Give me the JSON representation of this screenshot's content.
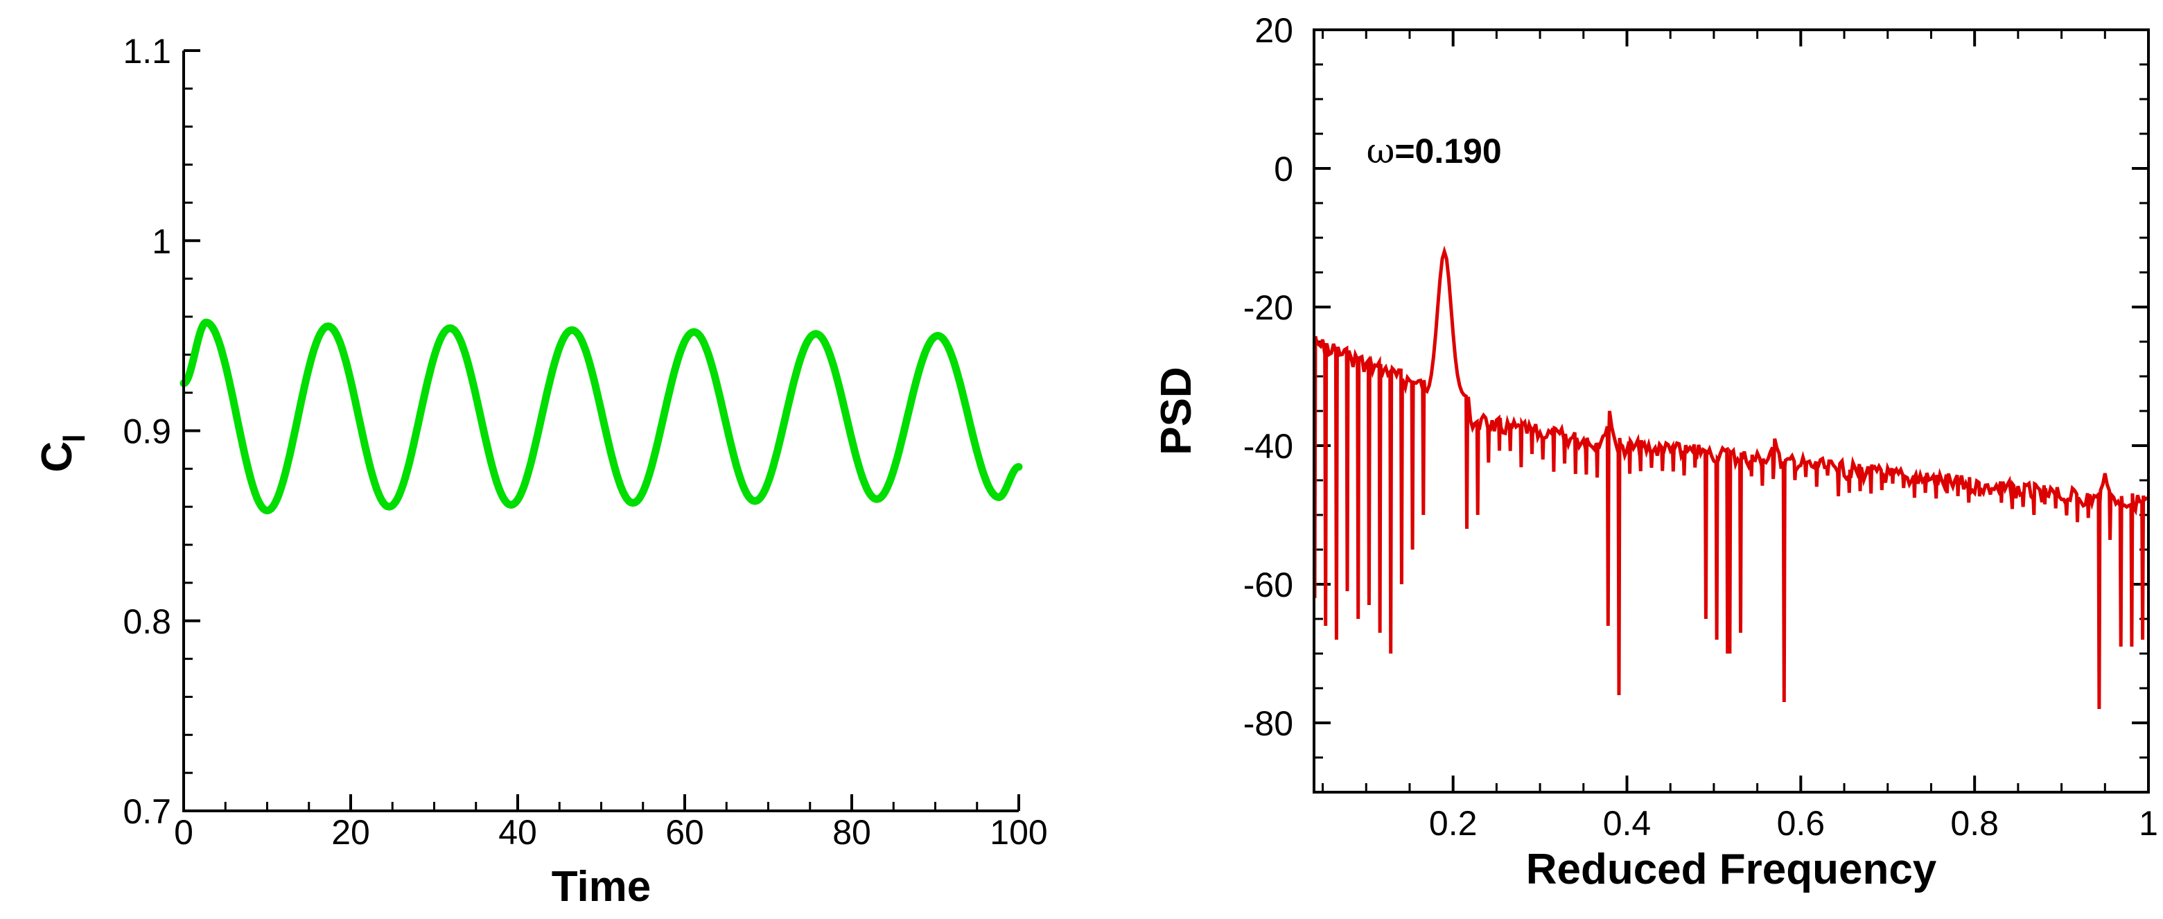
{
  "chart_data": [
    {
      "type": "line",
      "xlabel": "Time",
      "ylabel_main": "C",
      "ylabel_sub": "l",
      "xlim": [
        0,
        100
      ],
      "ylim": [
        0.7,
        1.1
      ],
      "xticks": [
        0,
        20,
        40,
        60,
        80,
        100
      ],
      "xtick_labels": [
        "0",
        "20",
        "40",
        "60",
        "80",
        "100"
      ],
      "yticks": [
        0.7,
        0.8,
        0.9,
        1.0,
        1.1
      ],
      "ytick_labels": [
        "0.7",
        "0.8",
        "0.9",
        "1",
        "1.1"
      ],
      "grid": false,
      "color": "#00dd00",
      "series": [
        {
          "x": [
            0,
            2.7,
            10.0,
            17.3,
            24.6,
            31.9,
            39.2,
            46.5,
            53.8,
            61.1,
            68.4,
            75.7,
            83.0,
            90.3,
            97.6,
            100
          ],
          "values": [
            0.925,
            0.957,
            0.858,
            0.955,
            0.86,
            0.954,
            0.861,
            0.953,
            0.862,
            0.952,
            0.863,
            0.951,
            0.864,
            0.95,
            0.865,
            0.881
          ]
        }
      ]
    },
    {
      "type": "line",
      "xlabel": "Reduced Frequency",
      "ylabel": "PSD",
      "xlim": [
        0.04,
        1.0
      ],
      "ylim": [
        -90,
        20
      ],
      "xticks": [
        0.2,
        0.4,
        0.6,
        0.8,
        1.0
      ],
      "xtick_labels": [
        "0.2",
        "0.4",
        "0.6",
        "0.8",
        "1"
      ],
      "yticks": [
        -80,
        -60,
        -40,
        -20,
        0,
        20
      ],
      "ytick_labels": [
        "-80",
        "-60",
        "-40",
        "-20",
        "0",
        "20"
      ],
      "grid": false,
      "color": "#dd0000",
      "annotation": {
        "symbol": "ω",
        "text": "=0.190",
        "x": 0.19,
        "y": 2
      },
      "peak": {
        "x": 0.19,
        "y": -12
      },
      "harmonics": [
        {
          "x": 0.38,
          "y": -35
        },
        {
          "x": 0.57,
          "y": -39
        },
        {
          "x": 0.95,
          "y": -44
        }
      ],
      "envelope": {
        "x": [
          0.04,
          0.1,
          0.16,
          0.175,
          0.21,
          0.3,
          0.4,
          0.5,
          0.6,
          0.7,
          0.8,
          0.9,
          1.0
        ],
        "y": [
          -24,
          -27,
          -30,
          -30,
          -35,
          -37,
          -39,
          -40,
          -41.5,
          -43,
          -44.5,
          -46,
          -47
        ]
      },
      "baseline": {
        "x": [
          0.04,
          0.175,
          0.205,
          0.4,
          0.6,
          0.8,
          1.0
        ],
        "y": [
          -32,
          -36,
          -40,
          -42,
          -44,
          -46,
          -52
        ]
      },
      "dip_spacing": 0.0125,
      "deep_dips": [
        {
          "x": 0.045,
          "y": -62
        },
        {
          "x": 0.058,
          "y": -66
        },
        {
          "x": 0.07,
          "y": -68
        },
        {
          "x": 0.082,
          "y": -61
        },
        {
          "x": 0.094,
          "y": -65
        },
        {
          "x": 0.107,
          "y": -63
        },
        {
          "x": 0.118,
          "y": -67
        },
        {
          "x": 0.13,
          "y": -70
        },
        {
          "x": 0.142,
          "y": -60
        },
        {
          "x": 0.158,
          "y": -55
        },
        {
          "x": 0.17,
          "y": -50
        },
        {
          "x": 0.21,
          "y": -52
        },
        {
          "x": 0.222,
          "y": -50
        },
        {
          "x": 0.375,
          "y": -66
        },
        {
          "x": 0.395,
          "y": -76
        },
        {
          "x": 0.485,
          "y": -65
        },
        {
          "x": 0.497,
          "y": -68
        },
        {
          "x": 0.512,
          "y": -70
        },
        {
          "x": 0.525,
          "y": -67
        },
        {
          "x": 0.58,
          "y": -77
        },
        {
          "x": 0.94,
          "y": -78
        },
        {
          "x": 0.965,
          "y": -69
        },
        {
          "x": 0.978,
          "y": -69
        },
        {
          "x": 0.99,
          "y": -68
        }
      ]
    }
  ]
}
